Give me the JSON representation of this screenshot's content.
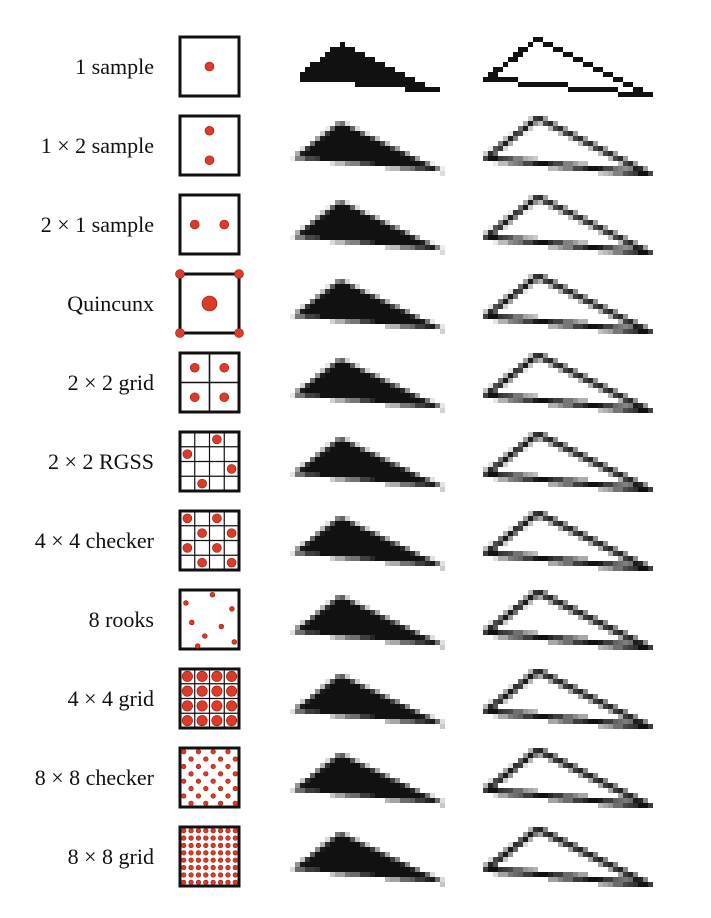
{
  "figure": {
    "sample_color": "#dd3b2a",
    "frame_color": "#111111",
    "rows": [
      {
        "label": "1 sample",
        "pattern": "single",
        "aa": 0.0
      },
      {
        "label": "1 × 2  sample",
        "pattern": "one-by-two",
        "aa": 0.25
      },
      {
        "label": "2 × 1 sample",
        "pattern": "two-by-one",
        "aa": 0.25
      },
      {
        "label": "Quincunx",
        "pattern": "quincunx",
        "aa": 0.55
      },
      {
        "label": "2 × 2 grid",
        "pattern": "grid-2x2",
        "aa": 0.55
      },
      {
        "label": "2 × 2 RGSS",
        "pattern": "rgss",
        "aa": 0.65
      },
      {
        "label": "4 × 4 checker",
        "pattern": "checker-4x4",
        "aa": 0.7
      },
      {
        "label": "8 rooks",
        "pattern": "rooks-8",
        "aa": 0.75
      },
      {
        "label": "4 × 4 grid",
        "pattern": "grid-4x4",
        "aa": 0.8
      },
      {
        "label": "8 × 8 checker",
        "pattern": "checker-8x8",
        "aa": 0.85
      },
      {
        "label": "8 × 8 grid",
        "pattern": "grid-8x8",
        "aa": 0.9
      }
    ]
  }
}
